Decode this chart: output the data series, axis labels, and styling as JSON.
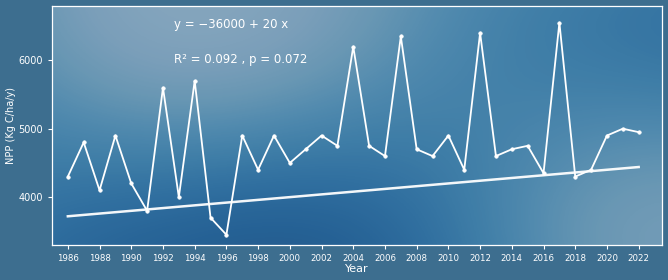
{
  "years": [
    1986,
    1987,
    1988,
    1989,
    1990,
    1991,
    1992,
    1993,
    1994,
    1995,
    1996,
    1997,
    1998,
    1999,
    2000,
    2001,
    2002,
    2003,
    2004,
    2005,
    2006,
    2007,
    2008,
    2009,
    2010,
    2011,
    2012,
    2013,
    2014,
    2015,
    2016,
    2017,
    2018,
    2019,
    2020,
    2021,
    2022
  ],
  "npp": [
    4300,
    4800,
    4100,
    4900,
    4200,
    3800,
    5600,
    4000,
    5700,
    3700,
    3450,
    4900,
    4400,
    4900,
    4500,
    4700,
    4900,
    4750,
    6200,
    4750,
    4600,
    6350,
    4700,
    4600,
    4900,
    4400,
    6400,
    4600,
    4700,
    4750,
    4350,
    6550,
    4300,
    4400,
    4900,
    5000,
    4950
  ],
  "slope": 20,
  "intercept": -36000,
  "ylabel": "NPP (Kg C/ha/y)",
  "xlabel": "Year",
  "equation": "y = −36000 + 20 x",
  "stats": "R² = 0.092 , p = 0.072",
  "ylim": [
    3300,
    6800
  ],
  "xlim": [
    1985,
    2023.5
  ],
  "yticks": [
    4000,
    5000,
    6000
  ],
  "xtick_years": [
    1986,
    1988,
    1990,
    1992,
    1994,
    1996,
    1998,
    2000,
    2002,
    2004,
    2006,
    2008,
    2010,
    2012,
    2014,
    2016,
    2018,
    2020,
    2022
  ],
  "line_color": "white",
  "trend_color": "white",
  "bg_color": "#3d6e8f",
  "text_color": "white",
  "spine_color": "white"
}
